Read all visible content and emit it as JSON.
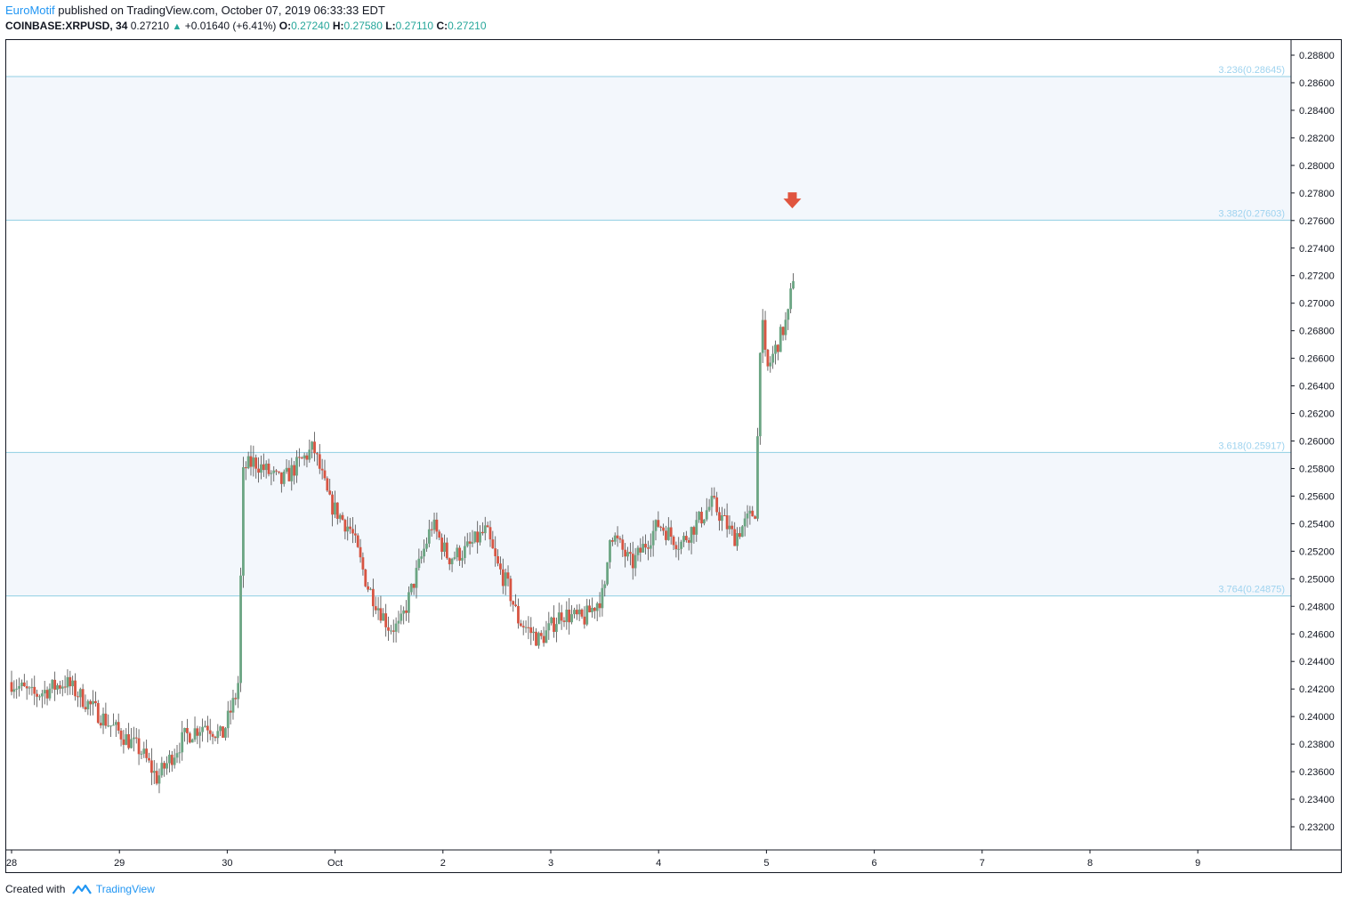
{
  "header": {
    "author": "EuroMotif",
    "published_text": "published on TradingView.com, October 07, 2019 06:33:33 EDT",
    "symbol": "COINBASE:XRPUSD, 34",
    "last": "0.27210",
    "change_icon": "up-triangle-icon",
    "change": "+0.01640 (+6.41%)",
    "o_label": "O:",
    "o_value": "0.27240",
    "h_label": "H:",
    "h_value": "0.27580",
    "l_label": "L:",
    "l_value": "0.27110",
    "c_label": "C:",
    "c_value": "0.27210"
  },
  "footer": {
    "created_with": "Created with",
    "logo_icon": "tradingview-logo-icon",
    "brand": "TradingView"
  },
  "colors": {
    "up": "#6ba583",
    "down": "#d75442",
    "fib_line": "#90cfe3",
    "fib_label": "#9ed3ef",
    "zone_fill": "#f3f7fc",
    "arrow": "#e0553f"
  },
  "chart_data": {
    "type": "candlestick",
    "symbol": "COINBASE:XRPUSD",
    "interval": "34",
    "ylim": [
      0.231,
      0.289
    ],
    "y_ticks": [
      "0.28800",
      "0.28600",
      "0.28400",
      "0.28200",
      "0.28000",
      "0.27800",
      "0.27600",
      "0.27400",
      "0.27200",
      "0.27000",
      "0.26800",
      "0.26600",
      "0.26400",
      "0.26200",
      "0.26000",
      "0.25800",
      "0.25600",
      "0.25400",
      "0.25200",
      "0.25000",
      "0.24800",
      "0.24600",
      "0.24400",
      "0.24200",
      "0.24000",
      "0.23800",
      "0.23600",
      "0.23400",
      "0.23200"
    ],
    "x_ticks": [
      "28",
      "29",
      "30",
      "Oct",
      "2",
      "3",
      "4",
      "5",
      "6",
      "7",
      "8",
      "9"
    ],
    "fib_levels": [
      {
        "label": "3.236(0.28645)",
        "value": 0.28645
      },
      {
        "label": "3.382(0.27603)",
        "value": 0.27603
      },
      {
        "label": "3.618(0.25917)",
        "value": 0.25917
      },
      {
        "label": "3.764(0.24875)",
        "value": 0.24875
      }
    ],
    "shaded_zones": [
      [
        0.27603,
        0.28645
      ],
      [
        0.24875,
        0.25917
      ]
    ],
    "price_path_x": [
      0,
      0.2,
      0.5,
      0.9,
      1.2,
      1.35,
      1.6,
      1.8,
      1.95,
      2.1,
      2.15,
      2.25,
      2.5,
      2.8,
      2.95,
      3.15,
      3.3,
      3.5,
      3.6,
      3.9,
      4.05,
      4.2,
      4.4,
      4.5,
      4.6,
      4.7,
      4.9,
      5.1,
      5.3,
      5.5,
      5.55,
      5.75,
      6.0,
      6.2,
      6.3,
      6.5,
      6.7,
      6.85,
      6.9,
      6.95,
      7.0,
      7.05,
      7.2,
      7.25
    ],
    "price_path_y": [
      0.2425,
      0.2415,
      0.2425,
      0.2395,
      0.2375,
      0.2355,
      0.2385,
      0.2395,
      0.2385,
      0.242,
      0.258,
      0.2585,
      0.257,
      0.2595,
      0.2555,
      0.2535,
      0.2495,
      0.2465,
      0.2465,
      0.254,
      0.2515,
      0.252,
      0.2535,
      0.251,
      0.2495,
      0.247,
      0.2455,
      0.2475,
      0.247,
      0.249,
      0.2535,
      0.251,
      0.254,
      0.2525,
      0.2535,
      0.2555,
      0.253,
      0.2545,
      0.255,
      0.2695,
      0.265,
      0.266,
      0.269,
      0.2721
    ],
    "marker": {
      "type": "arrow-down",
      "x": 7.24,
      "y": 0.2774
    },
    "grid": false
  }
}
